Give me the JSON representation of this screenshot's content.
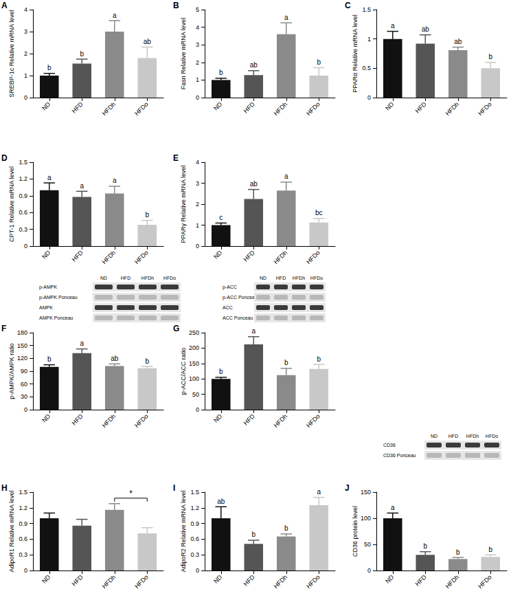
{
  "chart_data": [
    {
      "type": "bar",
      "panel": "A",
      "ylabel": "SREBP-1c Relative mRNA level",
      "categories": [
        "ND",
        "HFD",
        "HFDh",
        "HFDo"
      ],
      "values": [
        1.0,
        1.55,
        3.0,
        1.8
      ],
      "errors": [
        0.1,
        0.2,
        0.5,
        0.5
      ],
      "letters": [
        "b",
        "b",
        "a",
        "ab"
      ],
      "colors": [
        "#111111",
        "#555555",
        "#8a8a8a",
        "#c8c8c8"
      ],
      "ylim": [
        0,
        4
      ],
      "yticks": [
        0,
        1,
        2,
        3,
        4
      ]
    },
    {
      "type": "bar",
      "panel": "B",
      "ylabel": "Fasn Relative mRNA level",
      "categories": [
        "ND",
        "HFD",
        "HFDh",
        "HFDo"
      ],
      "values": [
        1.0,
        1.28,
        3.6,
        1.25
      ],
      "errors": [
        0.1,
        0.25,
        0.65,
        0.45
      ],
      "letters": [
        "b",
        "ab",
        "a",
        "b"
      ],
      "colors": [
        "#111111",
        "#555555",
        "#8a8a8a",
        "#c8c8c8"
      ],
      "ylim": [
        0,
        5
      ],
      "yticks": [
        0,
        1,
        2,
        3,
        4,
        5
      ]
    },
    {
      "type": "bar",
      "panel": "C",
      "ylabel": "PPARα Relative mRNA level",
      "categories": [
        "ND",
        "HFD",
        "HFDh",
        "HFDo"
      ],
      "values": [
        1.0,
        0.92,
        0.81,
        0.5
      ],
      "errors": [
        0.13,
        0.15,
        0.05,
        0.1
      ],
      "letters": [
        "a",
        "ab",
        "ab",
        "b"
      ],
      "colors": [
        "#111111",
        "#555555",
        "#8a8a8a",
        "#c8c8c8"
      ],
      "ylim": [
        0,
        1.5
      ],
      "yticks": [
        0,
        0.5,
        1,
        1.5
      ]
    },
    {
      "type": "bar",
      "panel": "D",
      "ylabel": "CPT-1 Relative mRNA level",
      "categories": [
        "ND",
        "HFD",
        "HFDh",
        "HFDo"
      ],
      "values": [
        1.0,
        0.88,
        0.94,
        0.38
      ],
      "errors": [
        0.13,
        0.1,
        0.13,
        0.08
      ],
      "letters": [
        "a",
        "a",
        "a",
        "b"
      ],
      "colors": [
        "#111111",
        "#555555",
        "#8a8a8a",
        "#c8c8c8"
      ],
      "ylim": [
        0,
        1.5
      ],
      "yticks": [
        0,
        0.3,
        0.6,
        0.9,
        1.2,
        1.5
      ]
    },
    {
      "type": "bar",
      "panel": "E",
      "ylabel": "PPARγ Relative mRNA level",
      "categories": [
        "ND",
        "HFD",
        "HFDh",
        "HFDo"
      ],
      "values": [
        1.0,
        2.25,
        2.65,
        1.12
      ],
      "errors": [
        0.1,
        0.45,
        0.4,
        0.2
      ],
      "letters": [
        "c",
        "ab",
        "a",
        "bc"
      ],
      "colors": [
        "#111111",
        "#555555",
        "#8a8a8a",
        "#c8c8c8"
      ],
      "ylim": [
        0,
        4
      ],
      "yticks": [
        0,
        1,
        2,
        3,
        4
      ]
    },
    {
      "type": "bar",
      "panel": "F",
      "ylabel": "p-AMPK/AMPK ratio",
      "categories": [
        "ND",
        "HFD",
        "HFDh",
        "HFDo"
      ],
      "values": [
        100,
        132,
        102,
        97
      ],
      "errors": [
        5,
        10,
        5,
        4
      ],
      "letters": [
        "b",
        "a",
        "ab",
        "b"
      ],
      "colors": [
        "#111111",
        "#555555",
        "#8a8a8a",
        "#c8c8c8"
      ],
      "ylim": [
        0,
        180
      ],
      "yticks": [
        0,
        30,
        60,
        90,
        120,
        150,
        180
      ]
    },
    {
      "type": "bar",
      "panel": "G",
      "ylabel": "p-ACC/ACC ratio",
      "categories": [
        "ND",
        "HFD",
        "HFDh",
        "HFDo"
      ],
      "values": [
        100,
        212,
        112,
        132
      ],
      "errors": [
        5,
        25,
        22,
        15
      ],
      "letters": [
        "b",
        "a",
        "b",
        "b"
      ],
      "colors": [
        "#111111",
        "#555555",
        "#8a8a8a",
        "#c8c8c8"
      ],
      "ylim": [
        0,
        250
      ],
      "yticks": [
        0,
        50,
        100,
        150,
        200,
        250
      ]
    },
    {
      "type": "bar",
      "panel": "H",
      "ylabel": "AdipoR1 Relative mRNA level",
      "categories": [
        "ND",
        "HFD",
        "HFDh",
        "HFDo"
      ],
      "values": [
        1.0,
        0.86,
        1.16,
        0.71
      ],
      "errors": [
        0.1,
        0.12,
        0.12,
        0.11
      ],
      "colors": [
        "#111111",
        "#555555",
        "#8a8a8a",
        "#c8c8c8"
      ],
      "ylim": [
        0,
        1.5
      ],
      "yticks": [
        0,
        0.3,
        0.6,
        0.9,
        1.2,
        1.5
      ],
      "annotations": [
        {
          "text": "*",
          "from": "HFDh",
          "to": "HFDo"
        }
      ]
    },
    {
      "type": "bar",
      "panel": "I",
      "ylabel": "AdipoR2 Relative mRNA level",
      "categories": [
        "ND",
        "HFD",
        "HFDh",
        "HFDo"
      ],
      "values": [
        1.0,
        0.51,
        0.65,
        1.25
      ],
      "errors": [
        0.22,
        0.07,
        0.05,
        0.15
      ],
      "letters": [
        "ab",
        "b",
        "b",
        "a"
      ],
      "colors": [
        "#111111",
        "#555555",
        "#8a8a8a",
        "#c8c8c8"
      ],
      "ylim": [
        0,
        1.5
      ],
      "yticks": [
        0,
        0.3,
        0.6,
        0.9,
        1.2,
        1.5
      ]
    },
    {
      "type": "bar",
      "panel": "J",
      "ylabel": "CD36 protein level",
      "categories": [
        "ND",
        "HFD",
        "HFDh",
        "HFDo"
      ],
      "values": [
        100,
        30,
        22,
        26
      ],
      "errors": [
        10,
        6,
        3,
        4
      ],
      "letters": [
        "a",
        "b",
        "b",
        "b"
      ],
      "colors": [
        "#111111",
        "#555555",
        "#8a8a8a",
        "#c8c8c8"
      ],
      "ylim": [
        0,
        150
      ],
      "yticks": [
        0,
        50,
        100,
        150
      ]
    }
  ],
  "blots": [
    {
      "lanes": [
        "ND",
        "HFD",
        "HFDh",
        "HFDo"
      ],
      "rows": [
        "p-AMPK",
        "p-AMPK Ponceau",
        "AMPK",
        "AMPK Ponceau"
      ]
    },
    {
      "lanes": [
        "ND",
        "HFD",
        "HFDh",
        "HFDo"
      ],
      "rows": [
        "p-ACC",
        "p-ACC Ponceau",
        "ACC",
        "ACC Ponceau"
      ]
    },
    {
      "lanes": [
        "ND",
        "HFD",
        "HFDh",
        "HFDo"
      ],
      "rows": [
        "CD36",
        "CD36 Ponceau"
      ]
    }
  ]
}
